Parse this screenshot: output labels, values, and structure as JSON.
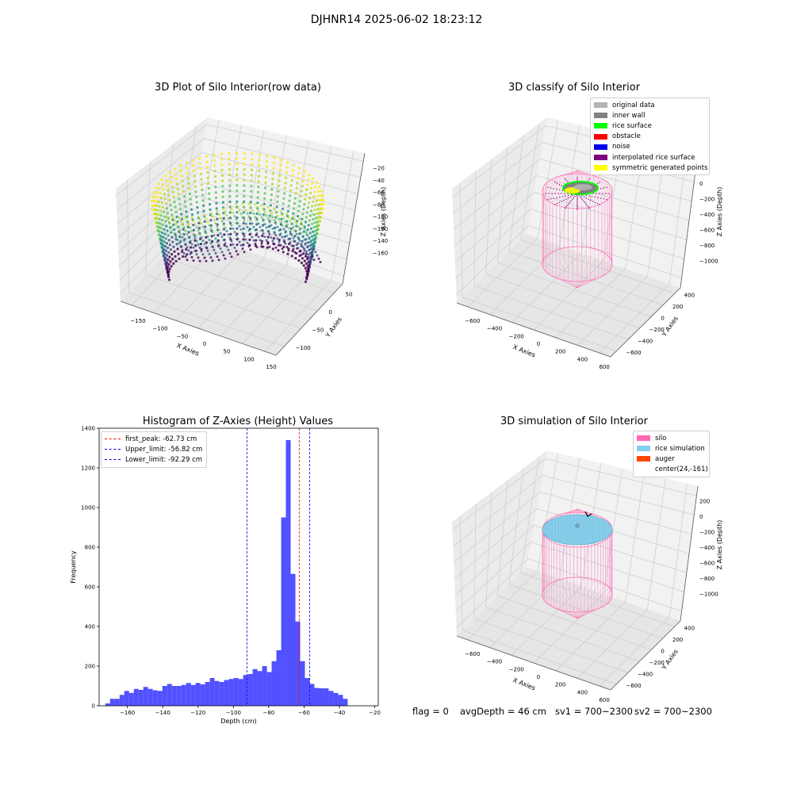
{
  "suptitle": "DJHNR14 2025-06-02 18:23:12",
  "colors": {
    "original_data": "#b3b3b3",
    "inner_wall": "#808080",
    "rice_surface": "#00ff00",
    "obstacle": "#ff0000",
    "noise": "#0000ee",
    "interpolated_rice_surface": "#800080",
    "symmetric_generated_points": "#ffff00",
    "silo": "#ff69b4",
    "rice_simulation": "#87ceeb",
    "auger": "#ff4500",
    "hist_bar": "#3333ff",
    "first_peak_line": "#ff0000",
    "limit_line": "#0000ff"
  },
  "chart_data": [
    {
      "type": "scatter",
      "subtype": "3d",
      "title": "3D Plot of Silo Interior(row data)",
      "xlabel": "X Axies",
      "ylabel": "Y Axies",
      "zlabel": "Z Axies (Depth)",
      "x_ticks": [
        "−150",
        "−100",
        "−50",
        "0",
        "50",
        "100",
        "150"
      ],
      "y_ticks": [
        "−100",
        "−50",
        "0",
        "50"
      ],
      "z_ticks": [
        "−20",
        "−40",
        "−60",
        "−80",
        "−100",
        "−120",
        "−140",
        "−160"
      ],
      "xlim": [
        -175,
        175
      ],
      "ylim": [
        -130,
        75
      ],
      "zlim": [
        -170,
        -15
      ],
      "colormap": "viridis",
      "grid": true
    },
    {
      "type": "scatter",
      "subtype": "3d",
      "title": "3D classify of Silo Interior",
      "xlabel": "X Axies",
      "ylabel": "Y Axies",
      "zlabel": "Z Axies (Depth)",
      "x_ticks": [
        "−600",
        "−400",
        "−200",
        "0",
        "200",
        "400",
        "600"
      ],
      "y_ticks": [
        "−600",
        "−400",
        "−200",
        "0",
        "200",
        "400"
      ],
      "z_ticks": [
        "200",
        "0",
        "−200",
        "−400",
        "−600",
        "−800",
        "−1000"
      ],
      "legend": [
        "original data",
        "inner wall",
        "rice surface",
        "obstacle",
        "noise",
        "interpolated rice surface",
        "symmetric generated points"
      ],
      "legend_position": "top-right",
      "grid": true
    },
    {
      "type": "bar",
      "subtype": "histogram",
      "title": "Histogram of Z-Axies (Height) Values",
      "xlabel": "Depth (cm)",
      "ylabel": "Frequency",
      "xlim": [
        -176,
        -18
      ],
      "ylim": [
        0,
        1400
      ],
      "x_ticks": [
        -160,
        -140,
        -120,
        -100,
        -80,
        -60,
        -40,
        -20
      ],
      "x_tick_labels": [
        "−160",
        "−140",
        "−120",
        "−100",
        "−80",
        "−60",
        "−40",
        "−20"
      ],
      "y_ticks": [
        0,
        200,
        400,
        600,
        800,
        1000,
        1200,
        1400
      ],
      "bin_start": -172.5,
      "bin_width": 2.69,
      "values": [
        12,
        35,
        35,
        55,
        75,
        65,
        85,
        80,
        95,
        85,
        78,
        75,
        100,
        110,
        100,
        100,
        105,
        115,
        105,
        115,
        108,
        120,
        140,
        125,
        120,
        130,
        135,
        140,
        135,
        155,
        160,
        185,
        175,
        200,
        170,
        225,
        280,
        950,
        1340,
        665,
        425,
        225,
        140,
        110,
        90,
        88,
        88,
        75,
        65,
        55,
        35
      ],
      "vlines": [
        {
          "label": "first_peak: -62.73 cm",
          "value": -62.73,
          "color": "#ff0000"
        },
        {
          "label": "Upper_limit: -56.82 cm",
          "value": -56.82,
          "color": "#0000ff"
        },
        {
          "label": "Lower_limit: -92.29 cm",
          "value": -92.29,
          "color": "#0000ff"
        }
      ],
      "legend_position": "top-left"
    },
    {
      "type": "scatter",
      "subtype": "3d",
      "title": "3D simulation of Silo Interior",
      "xlabel": "X Axies",
      "ylabel": "Y Axies",
      "zlabel": "Z Axies (Depth)",
      "x_ticks": [
        "−600",
        "−400",
        "−200",
        "0",
        "200",
        "400",
        "600"
      ],
      "y_ticks": [
        "−600",
        "−400",
        "−200",
        "0",
        "200",
        "400"
      ],
      "z_ticks": [
        "200",
        "0",
        "−200",
        "−400",
        "−600",
        "−800",
        "−1000"
      ],
      "legend": [
        "silo",
        "rice simulation",
        "auger",
        "center(24,-161)"
      ],
      "legend_position": "top-right",
      "grid": true
    }
  ],
  "status": {
    "flag": "flag = 0",
    "avg_depth": "avgDepth = 46 cm",
    "sv1": "sv1 = 700~2300",
    "sv2": "sv2 = 700~2300"
  }
}
